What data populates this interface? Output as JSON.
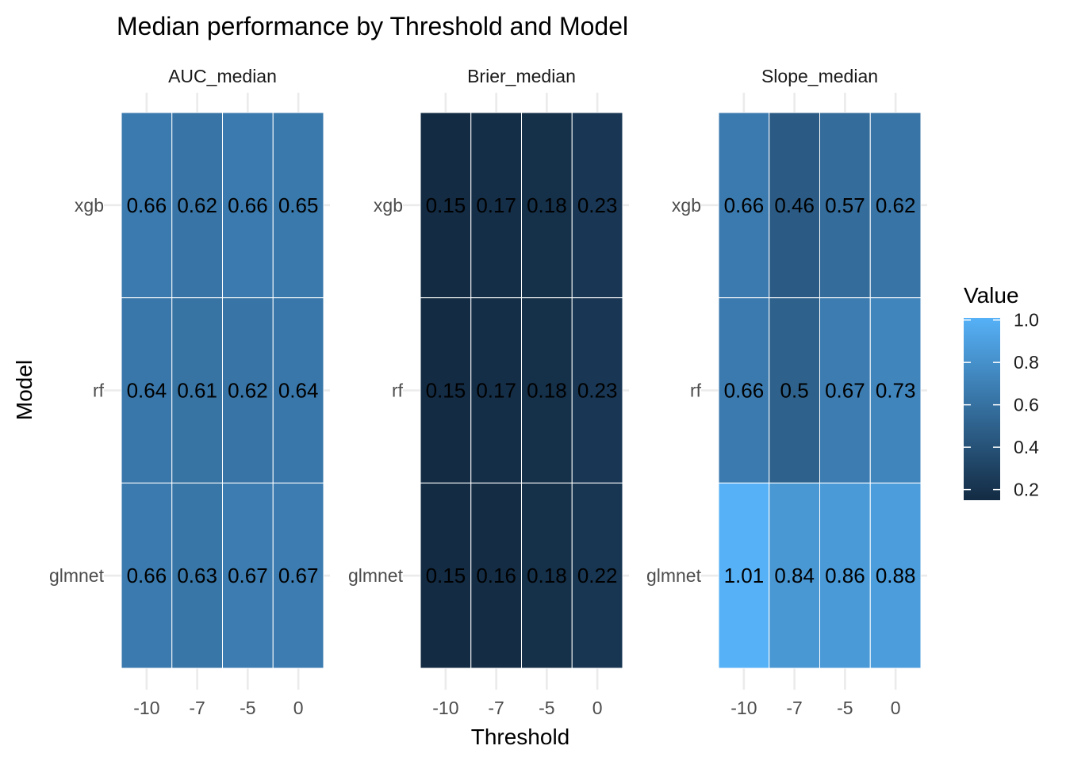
{
  "chart_data": {
    "type": "heatmap",
    "title": "Median performance by Threshold and Model",
    "xlabel": "Threshold",
    "ylabel": "Model",
    "x_categories": [
      "-10",
      "-7",
      "-5",
      "0"
    ],
    "y_categories": [
      "xgb",
      "rf",
      "glmnet"
    ],
    "color_scale": {
      "low_color": "#132B43",
      "high_color": "#56B1F7",
      "limits": [
        0.15,
        1.01
      ]
    },
    "legend": {
      "title": "Value",
      "position": "right",
      "breaks": [
        1.0,
        0.8,
        0.6,
        0.4,
        0.2
      ],
      "labels": [
        "1.0",
        "0.8",
        "0.6",
        "0.4",
        "0.2"
      ]
    },
    "grid": true,
    "facets": [
      {
        "name": "AUC_median",
        "values": {
          "xgb": [
            0.66,
            0.62,
            0.66,
            0.65
          ],
          "rf": [
            0.64,
            0.61,
            0.62,
            0.64
          ],
          "glmnet": [
            0.66,
            0.63,
            0.67,
            0.67
          ]
        },
        "labels": {
          "xgb": [
            "0.66",
            "0.62",
            "0.66",
            "0.65"
          ],
          "rf": [
            "0.64",
            "0.61",
            "0.62",
            "0.64"
          ],
          "glmnet": [
            "0.66",
            "0.63",
            "0.67",
            "0.67"
          ]
        }
      },
      {
        "name": "Brier_median",
        "values": {
          "xgb": [
            0.15,
            0.17,
            0.18,
            0.23
          ],
          "rf": [
            0.15,
            0.17,
            0.18,
            0.23
          ],
          "glmnet": [
            0.15,
            0.16,
            0.18,
            0.22
          ]
        },
        "labels": {
          "xgb": [
            "0.15",
            "0.17",
            "0.18",
            "0.23"
          ],
          "rf": [
            "0.15",
            "0.17",
            "0.18",
            "0.23"
          ],
          "glmnet": [
            "0.15",
            "0.16",
            "0.18",
            "0.22"
          ]
        }
      },
      {
        "name": "Slope_median",
        "values": {
          "xgb": [
            0.66,
            0.46,
            0.57,
            0.62
          ],
          "rf": [
            0.66,
            0.5,
            0.67,
            0.73
          ],
          "glmnet": [
            1.01,
            0.84,
            0.86,
            0.88
          ]
        },
        "labels": {
          "xgb": [
            "0.66",
            "0.46",
            "0.57",
            "0.62"
          ],
          "rf": [
            "0.66",
            "0.5",
            "0.67",
            "0.73"
          ],
          "glmnet": [
            "1.01",
            "0.84",
            "0.86",
            "0.88"
          ]
        }
      }
    ]
  }
}
